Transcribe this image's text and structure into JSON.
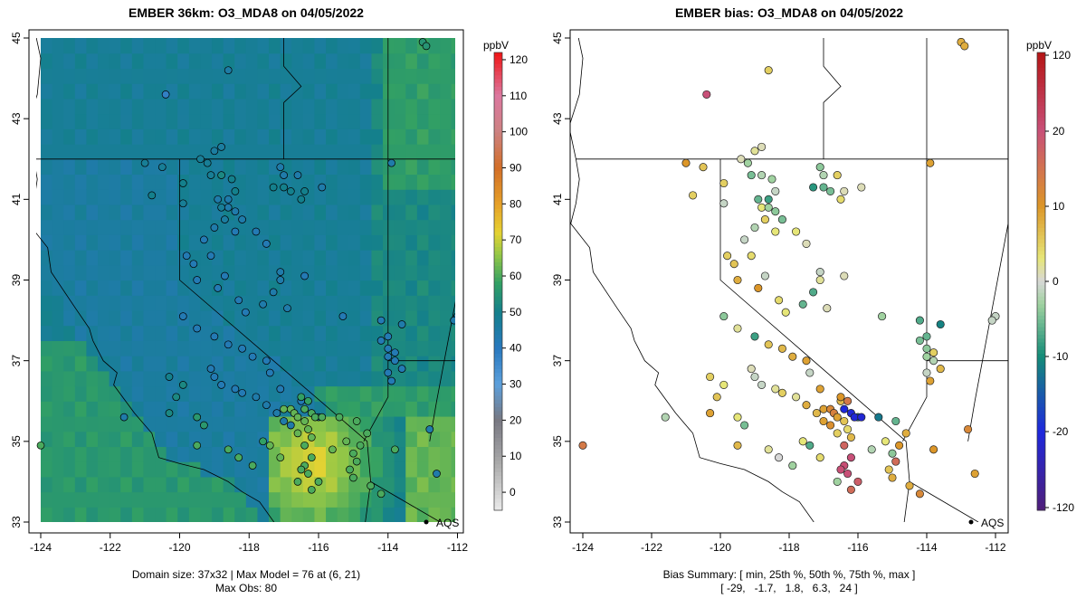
{
  "chart_data": [
    {
      "type": "heatmap",
      "panel": "model",
      "title": "EMBER 36km: O3_MDA8 on 04/05/2022",
      "xlim": [
        -124,
        -112
      ],
      "ylim": [
        33,
        45
      ],
      "xticks": [
        "-124",
        "-122",
        "-120",
        "-118",
        "-116",
        "-114",
        "-112"
      ],
      "yticks": [
        "33",
        "35",
        "37",
        "39",
        "41",
        "43",
        "45"
      ],
      "colorbar": {
        "unit": "ppbV",
        "range": [
          -5,
          122
        ],
        "ticks": [
          "0",
          "10",
          "20",
          "30",
          "40",
          "50",
          "60",
          "70",
          "80",
          "90",
          "100",
          "110",
          "120"
        ],
        "tick_values": [
          0,
          10,
          20,
          30,
          40,
          50,
          60,
          70,
          80,
          90,
          100,
          110,
          120
        ]
      },
      "annotation": "AQS",
      "footer": [
        "Domain size: 37x32 | Max Model = 76 at (6, 21)",
        "Max Obs: 80"
      ],
      "grid_dims": [
        37,
        32
      ],
      "max_model": 76,
      "max_obs": 80
    },
    {
      "type": "scatter",
      "panel": "bias",
      "title": "EMBER bias: O3_MDA8 on 04/05/2022",
      "xlim": [
        -124,
        -112
      ],
      "ylim": [
        33,
        45
      ],
      "xticks": [
        "-124",
        "-122",
        "-120",
        "-118",
        "-116",
        "-114",
        "-112"
      ],
      "yticks": [
        "33",
        "35",
        "37",
        "39",
        "41",
        "43",
        "45"
      ],
      "colorbar": {
        "unit": "ppbV",
        "range": [
          -125,
          125
        ],
        "ticks": [
          "120",
          "20",
          "10",
          "0",
          "-10",
          "-20",
          "-120"
        ],
        "tick_values": [
          120,
          20,
          10,
          0,
          -10,
          -20,
          -120
        ]
      },
      "annotation": "AQS",
      "footer": [
        "Bias Summary: [ min, 25th %, 50th %, 75th %, max ]",
        "[ -29,   -1.7,   1.8,   6.3,   24 ]"
      ],
      "bias_summary": {
        "min": -29,
        "p25": -1.7,
        "p50": 1.8,
        "p75": 6.3,
        "max": 24
      }
    }
  ],
  "sites": [
    [
      -124.0,
      34.9,
      60,
      14
    ],
    [
      -120.4,
      43.6,
      38,
      20
    ],
    [
      -118.6,
      44.2,
      45,
      5
    ],
    [
      -113.0,
      44.9,
      55,
      8
    ],
    [
      -112.9,
      44.8,
      55,
      8
    ],
    [
      -121.0,
      41.9,
      48,
      10
    ],
    [
      -120.5,
      41.8,
      48,
      6
    ],
    [
      -119.9,
      41.4,
      50,
      5
    ],
    [
      -118.8,
      41.6,
      52,
      -2
    ],
    [
      -118.5,
      41.5,
      50,
      -3
    ],
    [
      -118.4,
      41.2,
      50,
      -1
    ],
    [
      -118.8,
      40.8,
      48,
      3
    ],
    [
      -118.7,
      40.5,
      46,
      5
    ],
    [
      -119.9,
      40.9,
      48,
      -1
    ],
    [
      -120.8,
      41.1,
      50,
      5
    ],
    [
      -119.4,
      42.0,
      48,
      1
    ],
    [
      -119.2,
      41.9,
      48,
      -3
    ],
    [
      -119.1,
      41.6,
      48,
      -5
    ],
    [
      -119.0,
      42.2,
      46,
      2
    ],
    [
      -118.8,
      42.3,
      46,
      1
    ],
    [
      -118.9,
      41.0,
      44,
      -6
    ],
    [
      -118.6,
      40.8,
      44,
      -3
    ],
    [
      -118.6,
      41.0,
      44,
      -8
    ],
    [
      -118.4,
      40.7,
      44,
      -4
    ],
    [
      -118.2,
      40.5,
      44,
      -5
    ],
    [
      -119.0,
      40.3,
      44,
      -2
    ],
    [
      -119.3,
      40.0,
      42,
      -1
    ],
    [
      -119.1,
      39.6,
      42,
      4
    ],
    [
      -119.6,
      39.4,
      42,
      6
    ],
    [
      -119.8,
      39.6,
      42,
      5
    ],
    [
      -119.5,
      39.0,
      42,
      8
    ],
    [
      -118.9,
      38.8,
      42,
      10
    ],
    [
      -118.7,
      39.1,
      42,
      -1
    ],
    [
      -118.3,
      38.5,
      42,
      4
    ],
    [
      -118.1,
      38.2,
      42,
      3
    ],
    [
      -117.6,
      38.4,
      44,
      -6
    ],
    [
      -117.3,
      38.7,
      44,
      -7
    ],
    [
      -117.1,
      39.0,
      44,
      2
    ],
    [
      -117.1,
      39.2,
      44,
      -1
    ],
    [
      -116.9,
      38.3,
      44,
      1
    ],
    [
      -116.4,
      39.1,
      42,
      1
    ],
    [
      -117.5,
      39.9,
      42,
      1
    ],
    [
      -117.8,
      40.2,
      42,
      3
    ],
    [
      -118.4,
      40.2,
      42,
      3
    ],
    [
      -117.3,
      41.3,
      50,
      -9
    ],
    [
      -117.0,
      41.3,
      50,
      -6
    ],
    [
      -116.8,
      41.2,
      50,
      -5
    ],
    [
      -116.4,
      41.2,
      50,
      1
    ],
    [
      -116.5,
      41.0,
      50,
      4
    ],
    [
      -117.0,
      41.6,
      44,
      -2
    ],
    [
      -117.1,
      41.8,
      44,
      -4
    ],
    [
      -116.6,
      41.6,
      44,
      5
    ],
    [
      -115.9,
      41.3,
      44,
      1
    ],
    [
      -113.9,
      41.9,
      44,
      9
    ],
    [
      -113.6,
      37.9,
      44,
      -11
    ],
    [
      -114.2,
      38.0,
      42,
      -7
    ],
    [
      -114.0,
      37.6,
      42,
      -6
    ],
    [
      -114.2,
      37.5,
      42,
      -5
    ],
    [
      -114.0,
      37.3,
      42,
      -4
    ],
    [
      -113.8,
      37.2,
      42,
      5
    ],
    [
      -114.0,
      37.1,
      42,
      -3
    ],
    [
      -113.8,
      37.0,
      42,
      -2
    ],
    [
      -113.6,
      36.8,
      42,
      7
    ],
    [
      -114.0,
      36.7,
      42,
      -1
    ],
    [
      -113.9,
      36.5,
      42,
      9
    ],
    [
      -115.3,
      38.1,
      42,
      -3
    ],
    [
      -112.0,
      38.1,
      44,
      -1
    ],
    [
      -112.1,
      38.0,
      44,
      -1
    ],
    [
      -121.6,
      35.6,
      44,
      -2
    ],
    [
      -119.9,
      38.1,
      42,
      -4
    ],
    [
      -119.5,
      37.8,
      42,
      2
    ],
    [
      -119.0,
      37.6,
      42,
      -8
    ],
    [
      -118.6,
      37.4,
      42,
      6
    ],
    [
      -118.2,
      37.3,
      42,
      7
    ],
    [
      -117.9,
      37.1,
      42,
      8
    ],
    [
      -117.5,
      37.0,
      42,
      9
    ],
    [
      -117.4,
      36.7,
      42,
      -1
    ],
    [
      -117.1,
      36.3,
      42,
      9
    ],
    [
      -116.5,
      36.0,
      42,
      7
    ],
    [
      -116.0,
      35.6,
      44,
      -12
    ],
    [
      -119.1,
      36.8,
      42,
      1
    ],
    [
      -119.0,
      36.6,
      42,
      -1
    ],
    [
      -118.8,
      36.4,
      42,
      -1
    ],
    [
      -118.4,
      36.3,
      42,
      2
    ],
    [
      -118.2,
      36.2,
      42,
      5
    ],
    [
      -117.8,
      36.1,
      44,
      2
    ],
    [
      -117.5,
      35.9,
      44,
      8
    ],
    [
      -117.2,
      35.7,
      44,
      7
    ],
    [
      -117.0,
      35.8,
      62,
      9
    ],
    [
      -116.8,
      35.8,
      62,
      12
    ],
    [
      -116.7,
      35.7,
      62,
      13
    ],
    [
      -116.6,
      35.6,
      62,
      9
    ],
    [
      -116.4,
      35.5,
      62,
      6
    ],
    [
      -116.3,
      35.3,
      62,
      4
    ],
    [
      -116.2,
      35.1,
      62,
      7
    ],
    [
      -116.8,
      35.4,
      44,
      11
    ],
    [
      -117.0,
      35.5,
      44,
      9
    ],
    [
      -116.4,
      35.8,
      60,
      -20
    ],
    [
      -116.2,
      35.7,
      60,
      -25
    ],
    [
      -116.1,
      35.6,
      60,
      -26
    ],
    [
      -115.9,
      35.6,
      60,
      -29
    ],
    [
      -116.5,
      36.1,
      58,
      10
    ],
    [
      -116.3,
      36.0,
      58,
      14
    ],
    [
      -115.4,
      35.6,
      60,
      -12
    ],
    [
      -114.9,
      35.5,
      60,
      -6
    ],
    [
      -114.6,
      35.2,
      60,
      8
    ],
    [
      -114.8,
      34.9,
      60,
      10
    ],
    [
      -115.0,
      34.7,
      60,
      -4
    ],
    [
      -114.9,
      34.5,
      60,
      16
    ],
    [
      -115.1,
      34.3,
      60,
      6
    ],
    [
      -115.0,
      34.1,
      60,
      8
    ],
    [
      -114.5,
      33.9,
      60,
      8
    ],
    [
      -114.2,
      33.7,
      60,
      12
    ],
    [
      -113.8,
      34.8,
      60,
      10
    ],
    [
      -112.6,
      34.2,
      44,
      9
    ],
    [
      -112.8,
      35.3,
      44,
      12
    ],
    [
      -116.4,
      34.9,
      60,
      17
    ],
    [
      -116.2,
      34.6,
      60,
      20
    ],
    [
      -116.4,
      34.4,
      60,
      24
    ],
    [
      -116.5,
      34.3,
      60,
      22
    ],
    [
      -116.3,
      34.2,
      60,
      21
    ],
    [
      -116.0,
      34.0,
      60,
      18
    ],
    [
      -116.6,
      34.0,
      60,
      -3
    ],
    [
      -116.2,
      33.8,
      60,
      16
    ],
    [
      -115.6,
      34.8,
      62,
      -2
    ],
    [
      -116.6,
      35.2,
      62,
      5
    ],
    [
      -117.1,
      34.6,
      62,
      4
    ],
    [
      -117.4,
      34.9,
      62,
      -7
    ],
    [
      -115.2,
      35.0,
      62,
      3
    ],
    [
      -117.6,
      35.0,
      58,
      3
    ],
    [
      -117.9,
      34.4,
      60,
      -3
    ],
    [
      -118.3,
      34.6,
      60,
      0
    ],
    [
      -118.6,
      34.8,
      60,
      2
    ],
    [
      -119.5,
      34.9,
      60,
      7
    ],
    [
      -119.3,
      35.4,
      56,
      -5
    ],
    [
      -119.5,
      35.6,
      56,
      3
    ],
    [
      -120.3,
      35.7,
      52,
      9
    ],
    [
      -120.1,
      36.1,
      52,
      6
    ],
    [
      -119.9,
      36.4,
      52,
      3
    ],
    [
      -120.3,
      36.6,
      50,
      5
    ]
  ],
  "styles": {
    "aqs_marker": "#000000",
    "outline": "#000000",
    "ocean": "#ffffff"
  }
}
